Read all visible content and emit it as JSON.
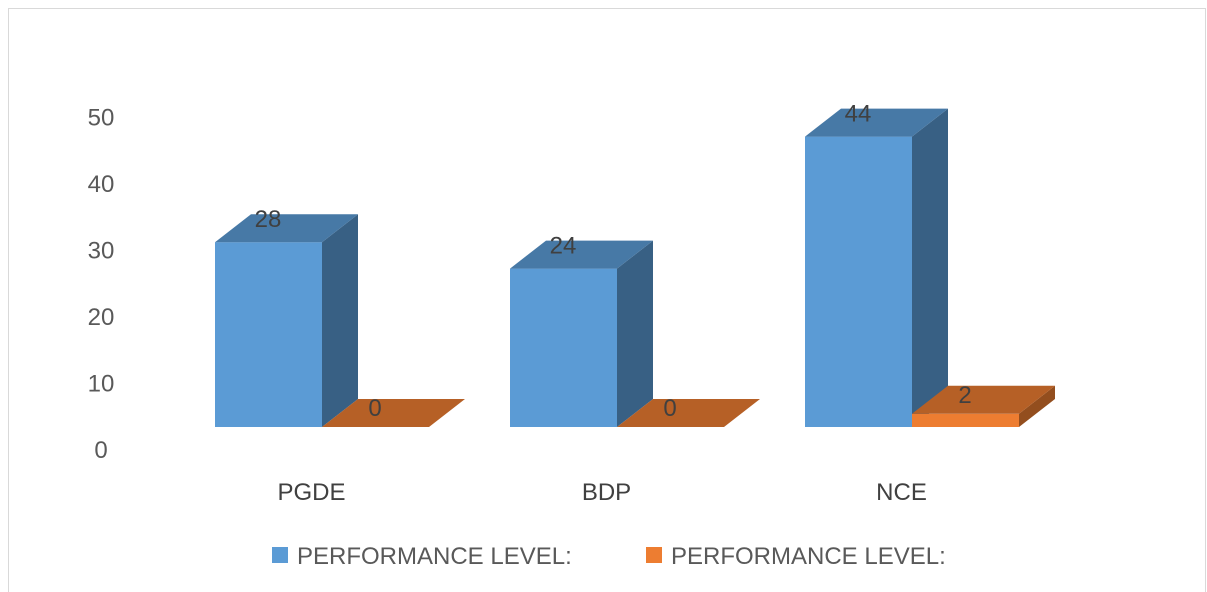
{
  "chart_data": {
    "type": "bar",
    "three_d": true,
    "categories": [
      "PGDE",
      "BDP",
      "NCE"
    ],
    "series": [
      {
        "name": "PERFORMANCE LEVEL:",
        "values": [
          28,
          24,
          44
        ],
        "color": "#5b9bd5"
      },
      {
        "name": "PERFORMANCE LEVEL:",
        "values": [
          0,
          0,
          2
        ],
        "color": "#ed7d31"
      }
    ],
    "ylim": [
      0,
      50
    ],
    "yticks": [
      0,
      10,
      20,
      30,
      40,
      50
    ],
    "grid": false,
    "legend": "bottom",
    "data_labels": true
  }
}
